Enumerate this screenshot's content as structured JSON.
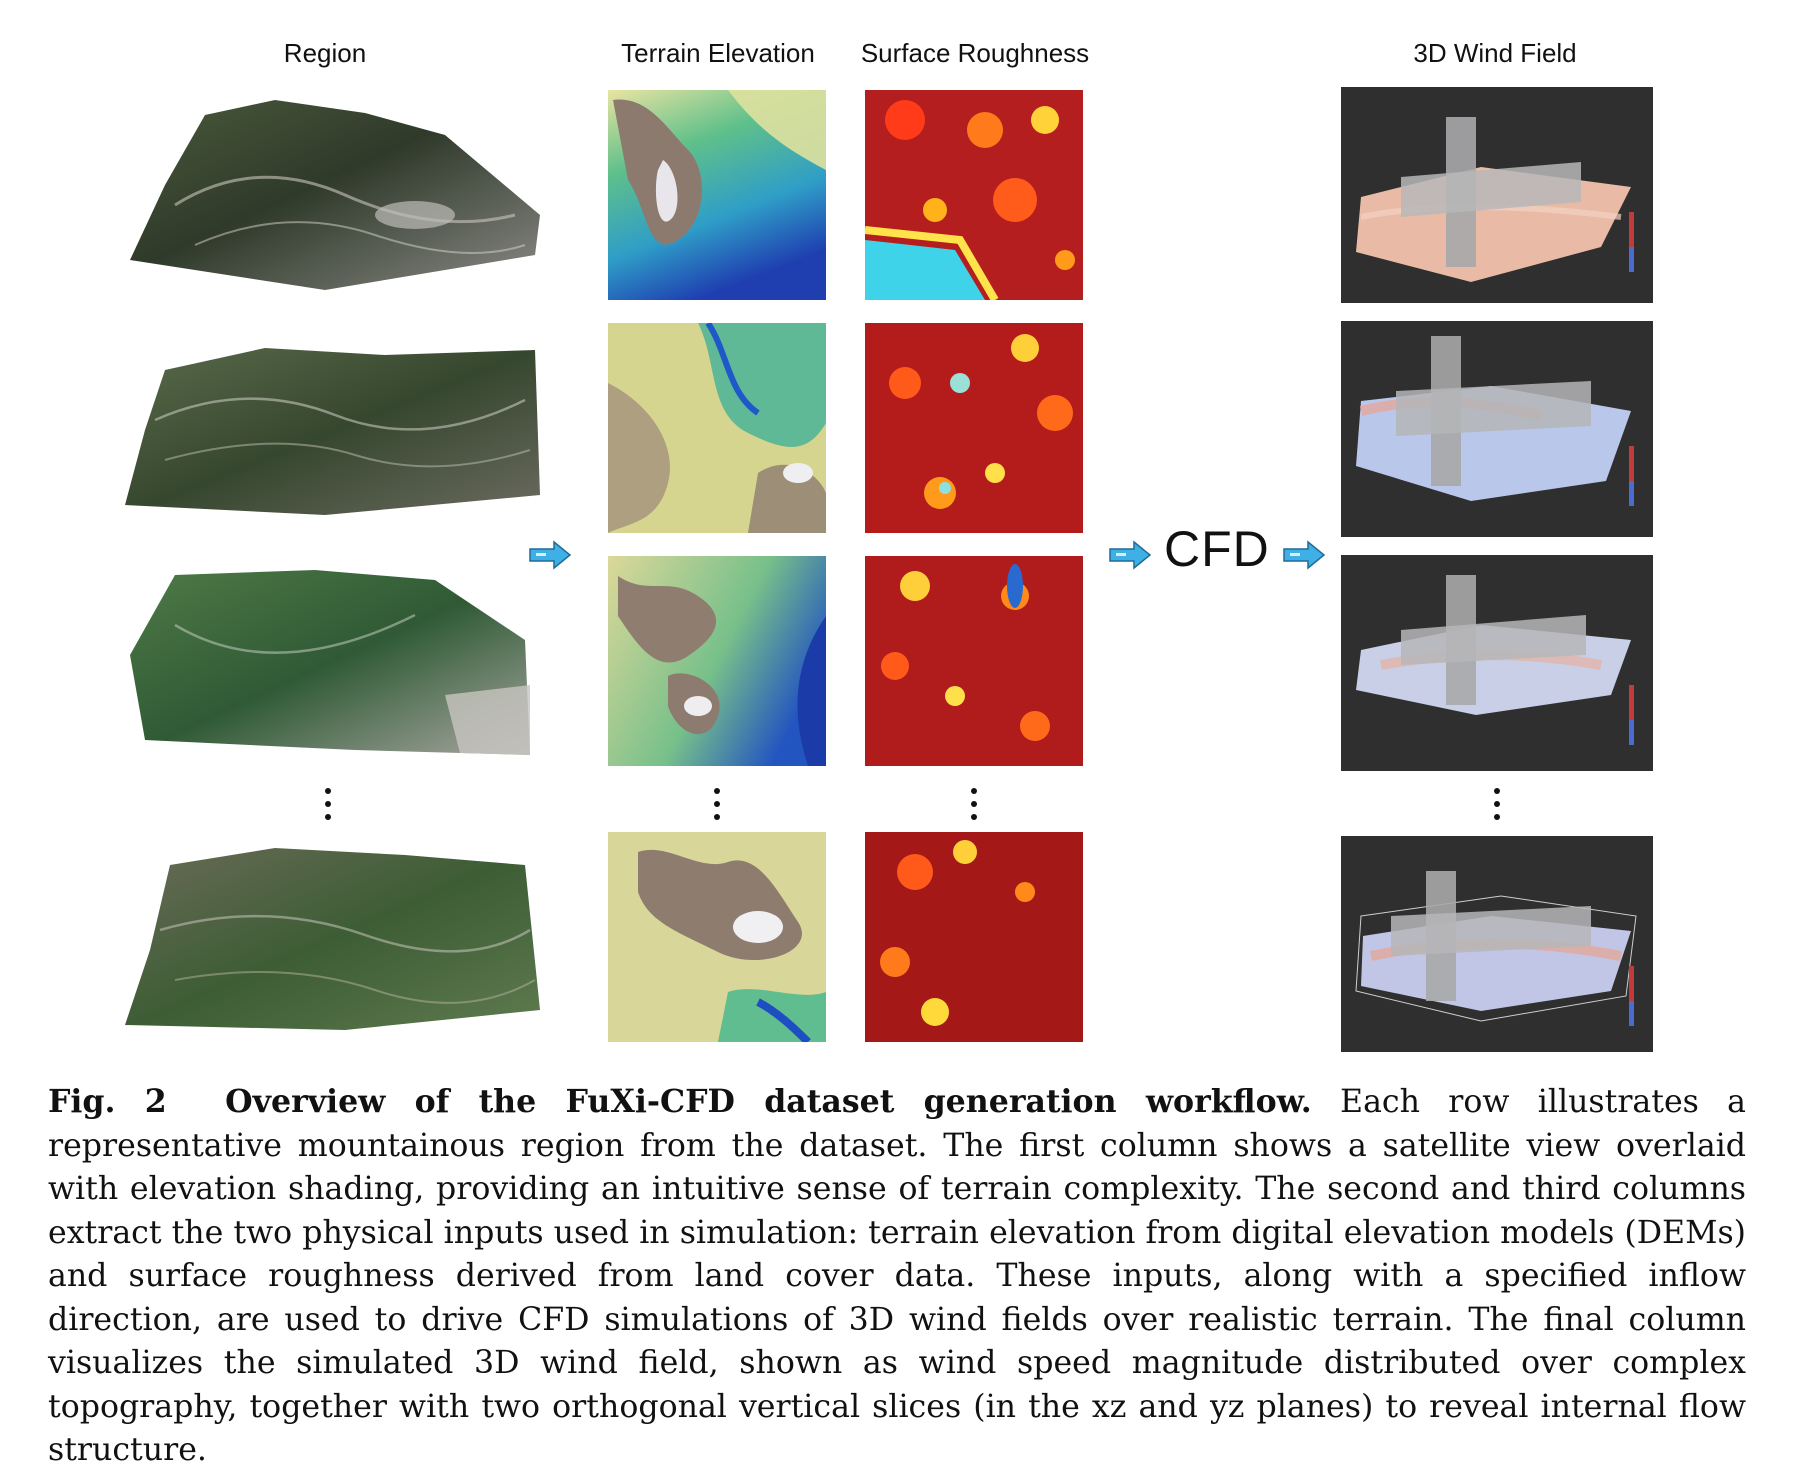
{
  "column_headers": {
    "region": "Region",
    "terrain_elevation": "Terrain Elevation",
    "surface_roughness": "Surface Roughness",
    "wind_field": "3D Wind Field"
  },
  "cfd_label": "CFD",
  "caption": {
    "label": "Fig. 2",
    "title": "Overview of the FuXi-CFD dataset generation workflow.",
    "text": "Each row illustrates a representative mountainous region from the dataset. The first column shows a satellite view overlaid with elevation shading, providing an intuitive sense of terrain complexity. The second and third columns extract the two physical inputs used in simulation: terrain elevation from digital elevation models (DEMs) and surface roughness derived from land cover data. These inputs, along with a specified inflow direction, are used to drive CFD simulations of 3D wind fields over realistic terrain. The final column visualizes the simulated 3D wind field, shown as wind speed magnitude distributed over complex topography, together with two orthogonal vertical slices (in the xz and yz planes) to reveal internal flow structure."
  },
  "colors": {
    "arrow_fill": "#3fb0e6",
    "arrow_stroke": "#1f6c97",
    "wind_panel_bg": "#2f2f2f"
  }
}
